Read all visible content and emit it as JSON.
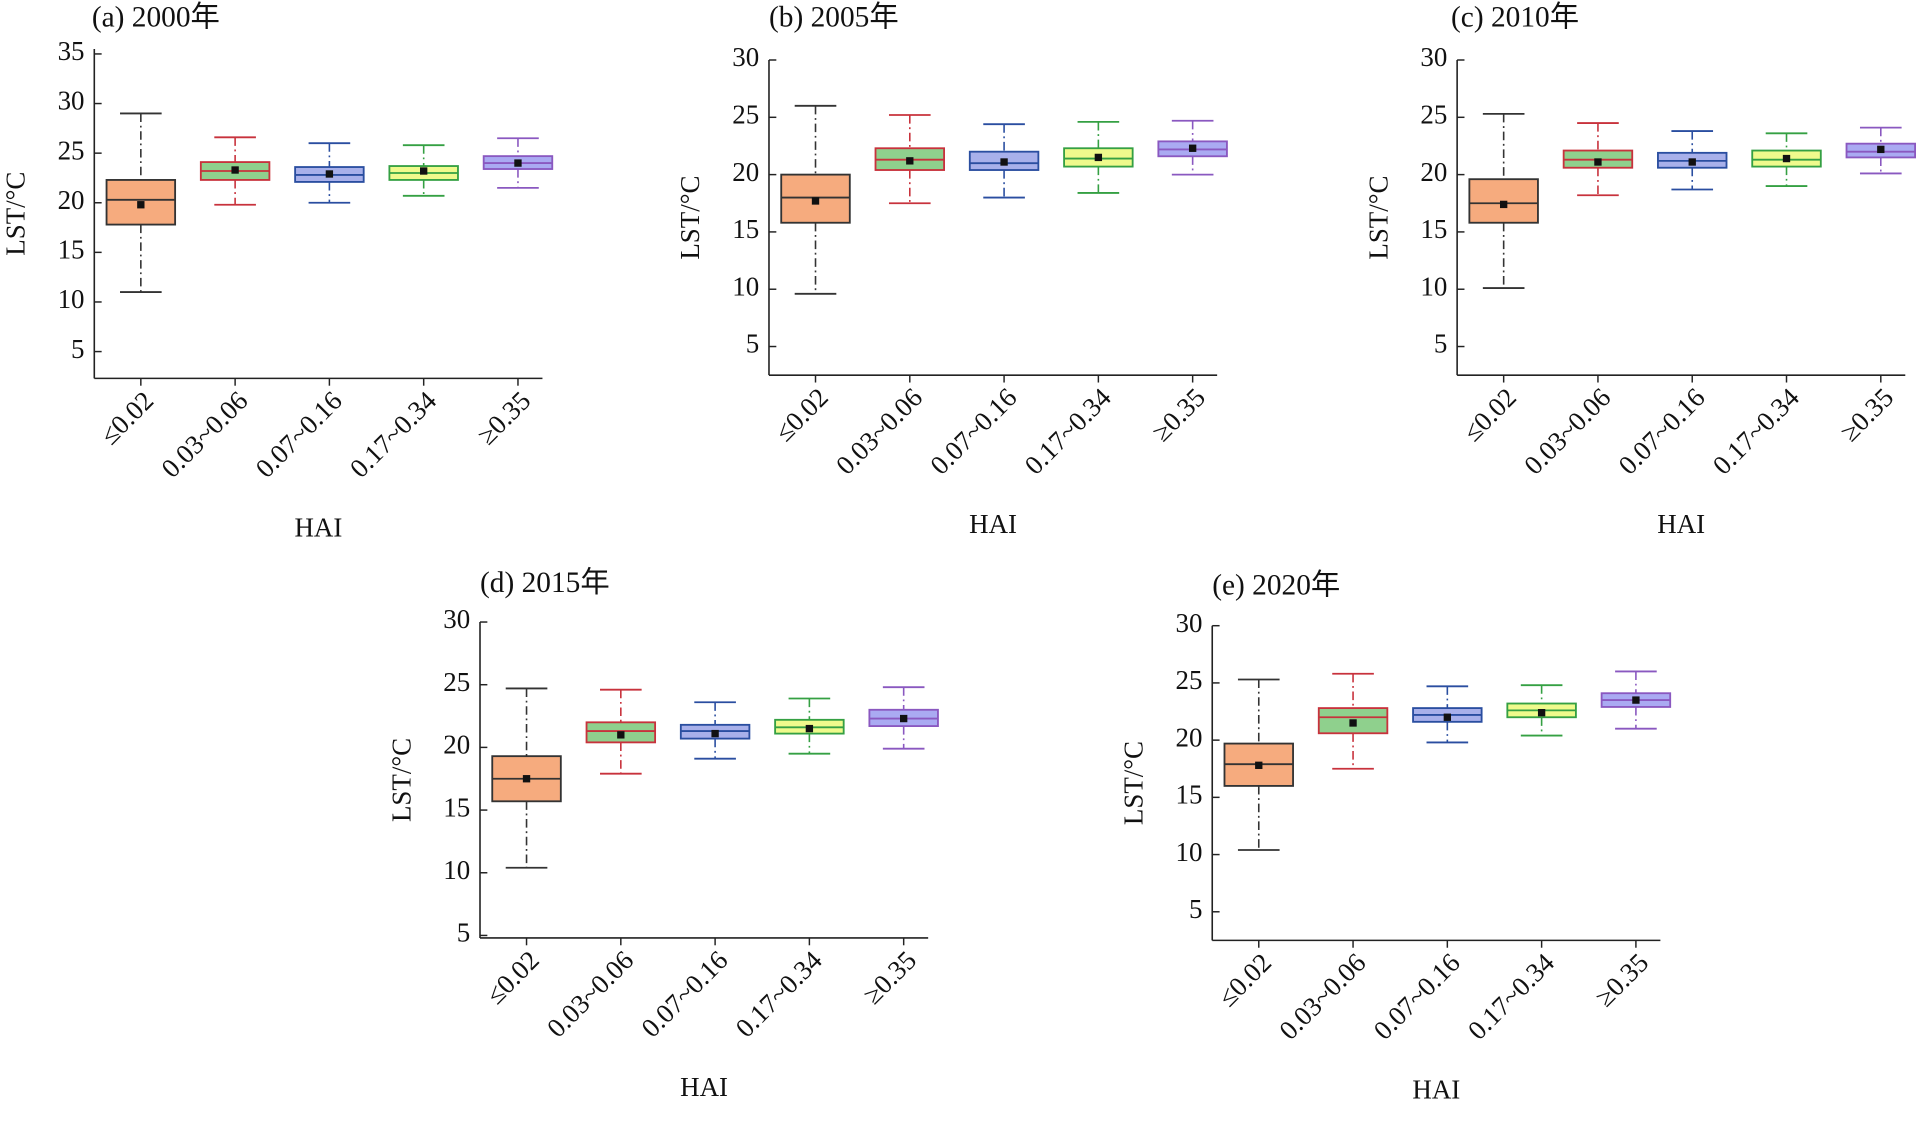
{
  "chart_data": [
    {
      "type": "box",
      "title": "(a) 2000年",
      "x_label": "HAI",
      "y_label": "LST/°C",
      "categories": [
        "≤0.02",
        "0.03~0.06",
        "0.07~0.16",
        "0.17~0.34",
        "≥0.35"
      ],
      "ylim": [
        2.3,
        35.5
      ],
      "yticks": [
        5,
        10,
        15,
        20,
        25,
        30,
        35
      ],
      "boxes": [
        {
          "min": 11,
          "q1": 17.8,
          "median": 20.3,
          "q3": 22.3,
          "max": 29,
          "mean": 19.8,
          "fill": "#f6ab7e",
          "color": "#333333"
        },
        {
          "min": 19.8,
          "q1": 22.3,
          "median": 23.2,
          "q3": 24.1,
          "max": 26.6,
          "mean": 23.3,
          "fill": "#8fd08d",
          "color": "#c8323c"
        },
        {
          "min": 20,
          "q1": 22.1,
          "median": 22.8,
          "q3": 23.6,
          "max": 26,
          "mean": 22.9,
          "fill": "#a8b0ea",
          "color": "#2a4ea0"
        },
        {
          "min": 20.7,
          "q1": 22.3,
          "median": 23,
          "q3": 23.7,
          "max": 25.8,
          "mean": 23.2,
          "fill": "#effa8c",
          "color": "#35a043"
        },
        {
          "min": 21.5,
          "q1": 23.4,
          "median": 24,
          "q3": 24.7,
          "max": 26.5,
          "mean": 24,
          "fill": "#aaaaf2",
          "color": "#8a58c0"
        }
      ]
    },
    {
      "type": "box",
      "title": "(b) 2005年",
      "x_label": "HAI",
      "y_label": "LST/°C",
      "categories": [
        "≤0.02",
        "0.03~0.06",
        "0.07~0.16",
        "0.17~0.34",
        "≥0.35"
      ],
      "ylim": [
        2.5,
        30
      ],
      "yticks": [
        5,
        10,
        15,
        20,
        25,
        30
      ],
      "boxes": [
        {
          "min": 9.6,
          "q1": 15.8,
          "median": 18,
          "q3": 20,
          "max": 26,
          "mean": 17.7,
          "fill": "#f6ab7e",
          "color": "#333333"
        },
        {
          "min": 17.5,
          "q1": 20.4,
          "median": 21.3,
          "q3": 22.3,
          "max": 25.2,
          "mean": 21.2,
          "fill": "#8fd08d",
          "color": "#c8323c"
        },
        {
          "min": 18,
          "q1": 20.4,
          "median": 21,
          "q3": 22,
          "max": 24.4,
          "mean": 21.1,
          "fill": "#a8b0ea",
          "color": "#2a4ea0"
        },
        {
          "min": 18.4,
          "q1": 20.7,
          "median": 21.4,
          "q3": 22.3,
          "max": 24.6,
          "mean": 21.5,
          "fill": "#effa8c",
          "color": "#35a043"
        },
        {
          "min": 20,
          "q1": 21.6,
          "median": 22.2,
          "q3": 22.9,
          "max": 24.7,
          "mean": 22.3,
          "fill": "#aaaaf2",
          "color": "#8a58c0"
        }
      ]
    },
    {
      "type": "box",
      "title": "(c) 2010年",
      "x_label": "HAI",
      "y_label": "LST/°C",
      "categories": [
        "≤0.02",
        "0.03~0.06",
        "0.07~0.16",
        "0.17~0.34",
        "≥0.35"
      ],
      "ylim": [
        2.5,
        30
      ],
      "yticks": [
        5,
        10,
        15,
        20,
        25,
        30
      ],
      "boxes": [
        {
          "min": 10.1,
          "q1": 15.8,
          "median": 17.5,
          "q3": 19.6,
          "max": 25.3,
          "mean": 17.4,
          "fill": "#f6ab7e",
          "color": "#333333"
        },
        {
          "min": 18.2,
          "q1": 20.6,
          "median": 21.3,
          "q3": 22.1,
          "max": 24.5,
          "mean": 21.1,
          "fill": "#8fd08d",
          "color": "#c8323c"
        },
        {
          "min": 18.7,
          "q1": 20.6,
          "median": 21.2,
          "q3": 21.9,
          "max": 23.8,
          "mean": 21.1,
          "fill": "#a8b0ea",
          "color": "#2a4ea0"
        },
        {
          "min": 19,
          "q1": 20.7,
          "median": 21.3,
          "q3": 22.1,
          "max": 23.6,
          "mean": 21.4,
          "fill": "#effa8c",
          "color": "#35a043"
        },
        {
          "min": 20.1,
          "q1": 21.5,
          "median": 22,
          "q3": 22.7,
          "max": 24.1,
          "mean": 22.2,
          "fill": "#aaaaf2",
          "color": "#8a58c0"
        }
      ]
    },
    {
      "type": "box",
      "title": "(d) 2015年",
      "x_label": "HAI",
      "y_label": "LST/°C",
      "categories": [
        "≤0.02",
        "0.03~0.06",
        "0.07~0.16",
        "0.17~0.34",
        "≥0.35"
      ],
      "ylim": [
        4.8,
        30
      ],
      "yticks": [
        5,
        10,
        15,
        20,
        25,
        30
      ],
      "boxes": [
        {
          "min": 10.4,
          "q1": 15.7,
          "median": 17.5,
          "q3": 19.3,
          "max": 24.7,
          "mean": 17.5,
          "fill": "#f6ab7e",
          "color": "#333333"
        },
        {
          "min": 17.9,
          "q1": 20.4,
          "median": 21.3,
          "q3": 22,
          "max": 24.6,
          "mean": 21,
          "fill": "#8fd08d",
          "color": "#c8323c"
        },
        {
          "min": 19.1,
          "q1": 20.7,
          "median": 21.3,
          "q3": 21.8,
          "max": 23.6,
          "mean": 21.1,
          "fill": "#a8b0ea",
          "color": "#2a4ea0"
        },
        {
          "min": 19.5,
          "q1": 21.1,
          "median": 21.6,
          "q3": 22.2,
          "max": 23.9,
          "mean": 21.5,
          "fill": "#effa8c",
          "color": "#35a043"
        },
        {
          "min": 19.9,
          "q1": 21.7,
          "median": 22.3,
          "q3": 23,
          "max": 24.8,
          "mean": 22.3,
          "fill": "#aaaaf2",
          "color": "#8a58c0"
        }
      ]
    },
    {
      "type": "box",
      "title": "(e) 2020年",
      "x_label": "HAI",
      "y_label": "LST/°C",
      "categories": [
        "≤0.02",
        "0.03~0.06",
        "0.07~0.16",
        "0.17~0.34",
        "≥0.35"
      ],
      "ylim": [
        2.5,
        30
      ],
      "yticks": [
        5,
        10,
        15,
        20,
        25,
        30
      ],
      "boxes": [
        {
          "min": 10.4,
          "q1": 16,
          "median": 17.9,
          "q3": 19.7,
          "max": 25.3,
          "mean": 17.8,
          "fill": "#f6ab7e",
          "color": "#333333"
        },
        {
          "min": 17.5,
          "q1": 20.6,
          "median": 22,
          "q3": 22.8,
          "max": 25.8,
          "mean": 21.5,
          "fill": "#8fd08d",
          "color": "#c8323c"
        },
        {
          "min": 19.8,
          "q1": 21.6,
          "median": 22.2,
          "q3": 22.8,
          "max": 24.7,
          "mean": 22,
          "fill": "#a8b0ea",
          "color": "#2a4ea0"
        },
        {
          "min": 20.4,
          "q1": 22,
          "median": 22.6,
          "q3": 23.2,
          "max": 24.8,
          "mean": 22.4,
          "fill": "#effa8c",
          "color": "#35a043"
        },
        {
          "min": 21,
          "q1": 22.9,
          "median": 23.5,
          "q3": 24.1,
          "max": 26,
          "mean": 23.5,
          "fill": "#aaaaf2",
          "color": "#8a58c0"
        }
      ]
    }
  ]
}
